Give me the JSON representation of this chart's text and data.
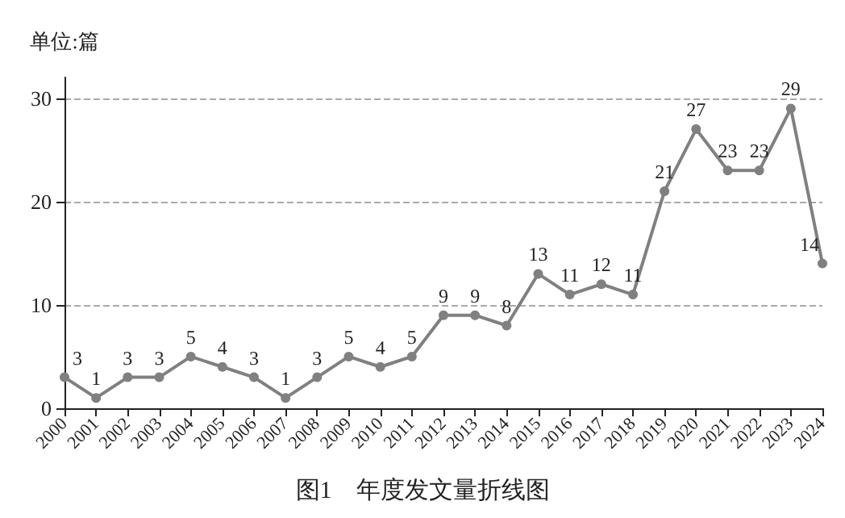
{
  "chart_data": {
    "type": "line",
    "title": "图1　年度发文量折线图",
    "ylabel": "单位:篇",
    "categories": [
      "2000",
      "2001",
      "2002",
      "2003",
      "2004",
      "2005",
      "2006",
      "2007",
      "2008",
      "2009",
      "2010",
      "2011",
      "2012",
      "2013",
      "2014",
      "2015",
      "2016",
      "2017",
      "2018",
      "2019",
      "2020",
      "2021",
      "2022",
      "2023",
      "2024"
    ],
    "series": [
      {
        "color": "#808080",
        "values": [
          3,
          1,
          3,
          3,
          5,
          4,
          3,
          1,
          3,
          5,
          4,
          5,
          9,
          9,
          8,
          13,
          11,
          12,
          11,
          21,
          27,
          23,
          23,
          29,
          14
        ]
      }
    ],
    "ylim": [
      0,
      32
    ],
    "yticks": [
      0,
      10,
      20,
      30
    ],
    "grid": "y",
    "data_labels": true,
    "marker": "circle",
    "line_style": "solid"
  }
}
